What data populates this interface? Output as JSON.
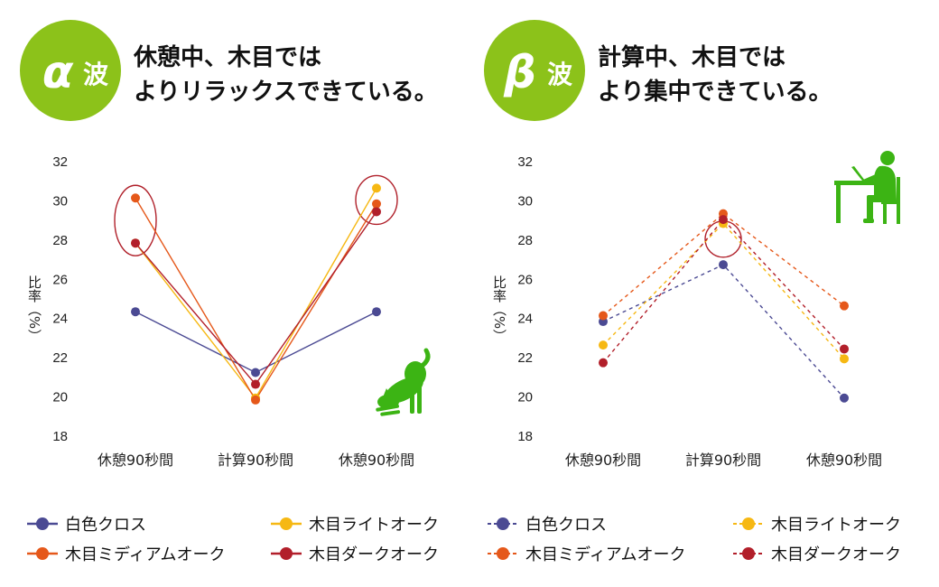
{
  "panels": [
    {
      "badge": {
        "symbol": "α",
        "wave": "波"
      },
      "title": [
        "休憩中、木目では",
        "よりリラックスできている。"
      ]
    },
    {
      "badge": {
        "symbol": "β",
        "wave": "波"
      },
      "title": [
        "計算中、木目では",
        "より集中できている。"
      ]
    }
  ],
  "colors": {
    "badge": "#8cc21a",
    "highlight": "#b0202a",
    "illustration": "#3cb414"
  },
  "chart_data": [
    {
      "type": "line",
      "title": "α波",
      "xlabel": "",
      "ylabel": "比率（%）",
      "ylim": [
        18,
        32
      ],
      "yticks": [
        18,
        20,
        22,
        24,
        26,
        28,
        30,
        32
      ],
      "categories": [
        "休憩90秒間",
        "計算90秒間",
        "休憩90秒間"
      ],
      "line_style": "solid",
      "series": [
        {
          "name": "白色クロス",
          "color": "#4b4a93",
          "values": [
            24.3,
            21.2,
            24.3
          ]
        },
        {
          "name": "木目ライトオーク",
          "color": "#f6b813",
          "values": [
            27.8,
            19.9,
            30.6
          ]
        },
        {
          "name": "木目ミディアムオーク",
          "color": "#e5581a",
          "values": [
            30.1,
            19.8,
            29.8
          ]
        },
        {
          "name": "木目ダークオーク",
          "color": "#b21f2a",
          "values": [
            27.8,
            20.6,
            29.4
          ]
        }
      ],
      "highlight_categories": [
        0,
        2
      ]
    },
    {
      "type": "line",
      "title": "β波",
      "xlabel": "",
      "ylabel": "比率（%）",
      "ylim": [
        18,
        32
      ],
      "yticks": [
        18,
        20,
        22,
        24,
        26,
        28,
        30,
        32
      ],
      "categories": [
        "休憩90秒間",
        "計算90秒間",
        "休憩90秒間"
      ],
      "line_style": "dashed",
      "series": [
        {
          "name": "白色クロス",
          "color": "#4b4a93",
          "values": [
            23.8,
            26.7,
            19.9
          ]
        },
        {
          "name": "木目ライトオーク",
          "color": "#f6b813",
          "values": [
            22.6,
            28.8,
            21.9
          ]
        },
        {
          "name": "木目ミディアムオーク",
          "color": "#e5581a",
          "values": [
            24.1,
            29.3,
            24.6
          ]
        },
        {
          "name": "木目ダークオーク",
          "color": "#b21f2a",
          "values": [
            21.7,
            29.0,
            22.4
          ]
        }
      ],
      "highlight_categories": [
        1
      ]
    }
  ]
}
